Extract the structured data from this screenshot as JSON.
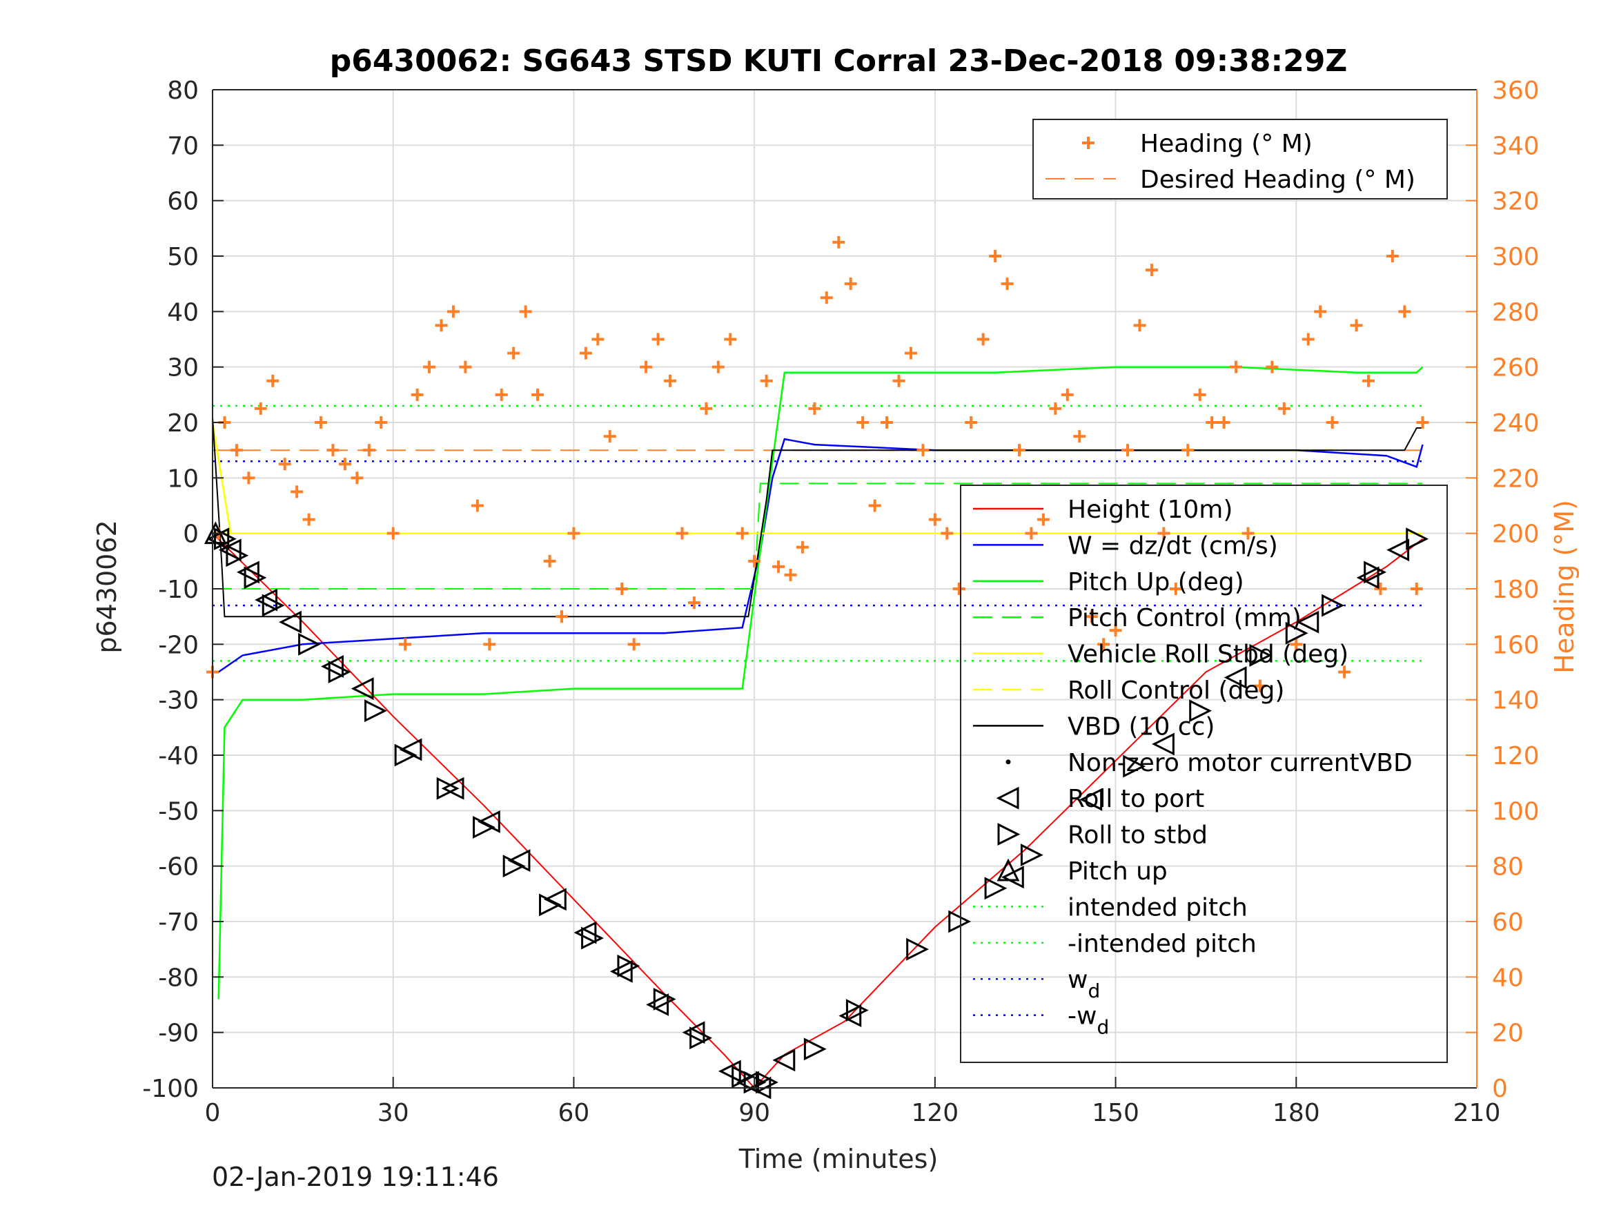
{
  "chart_data": {
    "type": "line",
    "title": "p6430062: SG643 STSD KUTI Corral 23-Dec-2018 09:38:29Z",
    "xlabel": "Time (minutes)",
    "ylabel_left": "p6430062",
    "ylabel_right": "Heading (°M)",
    "xlim": [
      0,
      210
    ],
    "ylim_left": [
      -100,
      80
    ],
    "ylim_right": [
      0,
      360
    ],
    "xticks": [
      "0",
      "30",
      "60",
      "90",
      "120",
      "150",
      "180",
      "210"
    ],
    "yticks_left": [
      "80",
      "70",
      "60",
      "50",
      "40",
      "30",
      "20",
      "10",
      "0",
      "-10",
      "-20",
      "-30",
      "-40",
      "-50",
      "-60",
      "-70",
      "-80",
      "-90",
      "-100"
    ],
    "yticks_right": [
      "360",
      "340",
      "320",
      "300",
      "280",
      "260",
      "240",
      "220",
      "200",
      "180",
      "160",
      "140",
      "120",
      "100",
      "80",
      "60",
      "40",
      "20",
      "0"
    ],
    "grid": true,
    "colors": {
      "height": "#ff0000",
      "w": "#0000ff",
      "pitch": "#00ff00",
      "roll": "#ffff00",
      "vbd": "#000000",
      "heading": "#ff7f27",
      "axis": "#262626"
    },
    "series": [
      {
        "name": "Height (10m)",
        "x": [
          0,
          15,
          30,
          45,
          60,
          75,
          85,
          90,
          95,
          105,
          120,
          135,
          150,
          165,
          180,
          195,
          201
        ],
        "y": [
          0,
          -16,
          -33,
          -49,
          -66,
          -83,
          -94,
          -100,
          -94,
          -88,
          -71,
          -57,
          -41,
          -25,
          -16,
          -6,
          -1
        ]
      },
      {
        "name": "W = dz/dt (cm/s)",
        "x": [
          1,
          5,
          15,
          30,
          45,
          60,
          75,
          88,
          91,
          93,
          95,
          100,
          120,
          140,
          160,
          180,
          195,
          200,
          201
        ],
        "y": [
          -25,
          -22,
          -20,
          -19,
          -18,
          -18,
          -18,
          -17,
          -3,
          10,
          17,
          16,
          15,
          15,
          15,
          15,
          14,
          12,
          16
        ]
      },
      {
        "name": "Pitch Up (deg)",
        "x": [
          1,
          2,
          5,
          15,
          30,
          45,
          60,
          75,
          88,
          91,
          95,
          110,
          130,
          150,
          170,
          190,
          200,
          201
        ],
        "y": [
          -84,
          -35,
          -30,
          -30,
          -29,
          -29,
          -28,
          -28,
          -28,
          -3,
          29,
          29,
          29,
          30,
          30,
          29,
          29,
          30
        ]
      },
      {
        "name": "Pitch Control (mm)",
        "x": [
          0,
          90,
          91,
          201
        ],
        "y": [
          -10,
          -10,
          9,
          9
        ]
      },
      {
        "name": "Vehicle Roll Stbd (deg)",
        "x": [
          0,
          3,
          10,
          30,
          60,
          90,
          120,
          150,
          180,
          201
        ],
        "y": [
          20,
          0,
          0,
          0,
          0,
          0,
          0,
          0,
          0,
          0
        ]
      },
      {
        "name": "Roll Control (deg)",
        "x": [
          0,
          201
        ],
        "y": [
          0,
          0
        ]
      },
      {
        "name": "VBD (10 cc)",
        "x": [
          0,
          1.5,
          2,
          89,
          92,
          93,
          198,
          200,
          201
        ],
        "y": [
          21,
          -5,
          -15,
          -15,
          6,
          15,
          15,
          19,
          19
        ]
      },
      {
        "name": "intended pitch",
        "x": [
          0,
          201
        ],
        "y": [
          23,
          23
        ]
      },
      {
        "name": "-intended pitch",
        "x": [
          0,
          201
        ],
        "y": [
          -23,
          -23
        ]
      },
      {
        "name": "w_d",
        "x": [
          0,
          201
        ],
        "y": [
          13,
          13
        ]
      },
      {
        "name": "-w_d",
        "x": [
          0,
          201
        ],
        "y": [
          -13,
          -13
        ]
      },
      {
        "name": "Heading (° M)",
        "axis": "right",
        "x": [
          0,
          1,
          2,
          4,
          6,
          8,
          10,
          12,
          14,
          16,
          18,
          20,
          22,
          24,
          26,
          28,
          30,
          32,
          34,
          36,
          38,
          40,
          42,
          44,
          46,
          48,
          50,
          52,
          54,
          56,
          58,
          60,
          62,
          64,
          66,
          68,
          70,
          72,
          74,
          76,
          78,
          80,
          82,
          84,
          86,
          88,
          90,
          92,
          94,
          96,
          98,
          100,
          102,
          104,
          106,
          108,
          110,
          112,
          114,
          116,
          118,
          120,
          122,
          124,
          126,
          128,
          130,
          132,
          134,
          136,
          138,
          140,
          142,
          144,
          146,
          148,
          150,
          152,
          154,
          156,
          158,
          160,
          162,
          164,
          166,
          168,
          170,
          172,
          174,
          176,
          178,
          180,
          182,
          184,
          186,
          188,
          190,
          192,
          194,
          196,
          198,
          200,
          201
        ],
        "y": [
          150,
          200,
          240,
          230,
          220,
          245,
          255,
          225,
          215,
          205,
          240,
          230,
          225,
          220,
          230,
          240,
          200,
          160,
          250,
          260,
          275,
          280,
          260,
          210,
          160,
          250,
          265,
          280,
          250,
          190,
          170,
          200,
          265,
          270,
          235,
          180,
          160,
          260,
          270,
          255,
          200,
          175,
          245,
          260,
          270,
          200,
          190,
          255,
          188,
          185,
          195,
          245,
          285,
          305,
          290,
          240,
          210,
          240,
          255,
          265,
          230,
          205,
          200,
          180,
          240,
          270,
          300,
          290,
          230,
          200,
          205,
          245,
          250,
          235,
          170,
          160,
          165,
          230,
          275,
          295,
          200,
          180,
          230,
          250,
          240,
          240,
          260,
          200,
          145,
          260,
          245,
          160,
          270,
          280,
          240,
          150,
          275,
          255,
          180,
          300,
          280,
          180,
          240
        ]
      },
      {
        "name": "Desired Heading (° M)",
        "axis": "right",
        "x": [
          0,
          201
        ],
        "y": [
          230,
          230
        ]
      }
    ],
    "markers": [
      {
        "name": "Roll to port",
        "x": [
          1,
          3,
          6,
          9,
          13,
          20,
          25,
          33,
          40,
          46,
          51,
          57,
          62,
          68,
          74,
          80,
          86,
          89,
          91,
          95,
          106,
          133,
          146,
          158,
          170,
          182,
          192,
          197
        ],
        "y": [
          -1,
          -3,
          -7,
          -12,
          -16,
          -24,
          -28,
          -39,
          -46,
          -52,
          -59,
          -66,
          -72,
          -79,
          -85,
          -90,
          -97,
          -99,
          -100,
          -95,
          -87,
          -62,
          -48,
          -38,
          -26,
          -16,
          -8,
          -3
        ]
      },
      {
        "name": "Roll to stbd",
        "x": [
          2,
          4,
          7,
          10,
          16,
          21,
          27,
          32,
          39,
          45,
          50,
          56,
          63,
          69,
          75,
          81,
          88,
          90,
          92,
          100,
          107,
          117,
          124,
          130,
          136,
          153,
          164,
          174,
          180,
          186,
          193,
          200
        ],
        "y": [
          -1,
          -4,
          -8,
          -13,
          -20,
          -25,
          -32,
          -40,
          -46,
          -53,
          -60,
          -67,
          -73,
          -78,
          -84,
          -91,
          -98,
          -99,
          -99,
          -93,
          -86,
          -75,
          -70,
          -64,
          -58,
          -42,
          -32,
          -22,
          -18,
          -13,
          -7,
          -1
        ]
      },
      {
        "name": "Pitch up",
        "x": [
          0.5
        ],
        "y": [
          0
        ]
      }
    ],
    "legend_top": [
      "Heading (° M)",
      "Desired Heading (° M)"
    ],
    "legend_bottom": [
      "Height (10m)",
      "W = dz/dt (cm/s)",
      "Pitch Up (deg)",
      "Pitch Control (mm)",
      "Vehicle Roll Stbd (deg)",
      "Roll Control (deg)",
      "VBD (10 cc)",
      "Non-zero motor currentVBD",
      "Roll to port",
      "Roll to stbd",
      "Pitch up",
      "intended pitch",
      "-intended pitch",
      "w",
      "-w"
    ],
    "legend_subscript": "d",
    "legend_top_placement": "top-right",
    "legend_bottom_placement": "center-right"
  },
  "footer": "02-Jan-2019 19:11:46"
}
